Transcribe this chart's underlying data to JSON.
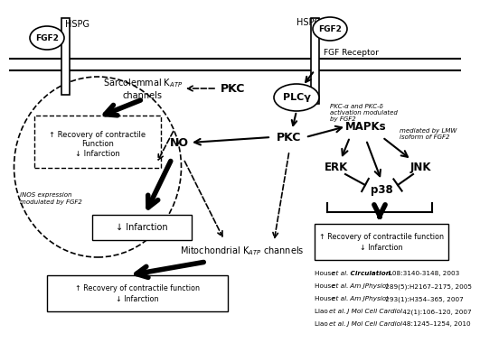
{
  "background": "#ffffff",
  "references": [
    [
      "House ",
      "et al. ",
      "Circulation.",
      " 108:3140-3148, 2003"
    ],
    [
      "House ",
      "et al. ",
      "Am JPhysiol",
      " 289(5):H2167–2175, 2005"
    ],
    [
      "House ",
      "et al. ",
      "Am JPhysiol",
      " 293(1):H354–365, 2007"
    ],
    [
      "Liao ",
      "et al. ",
      "J Mol Cell Cardiol",
      " 42(1):106–120, 2007"
    ],
    [
      "Liao ",
      "et al. ",
      "J Mol Cell Cardiol",
      " 48:1245–1254, 2010"
    ]
  ]
}
